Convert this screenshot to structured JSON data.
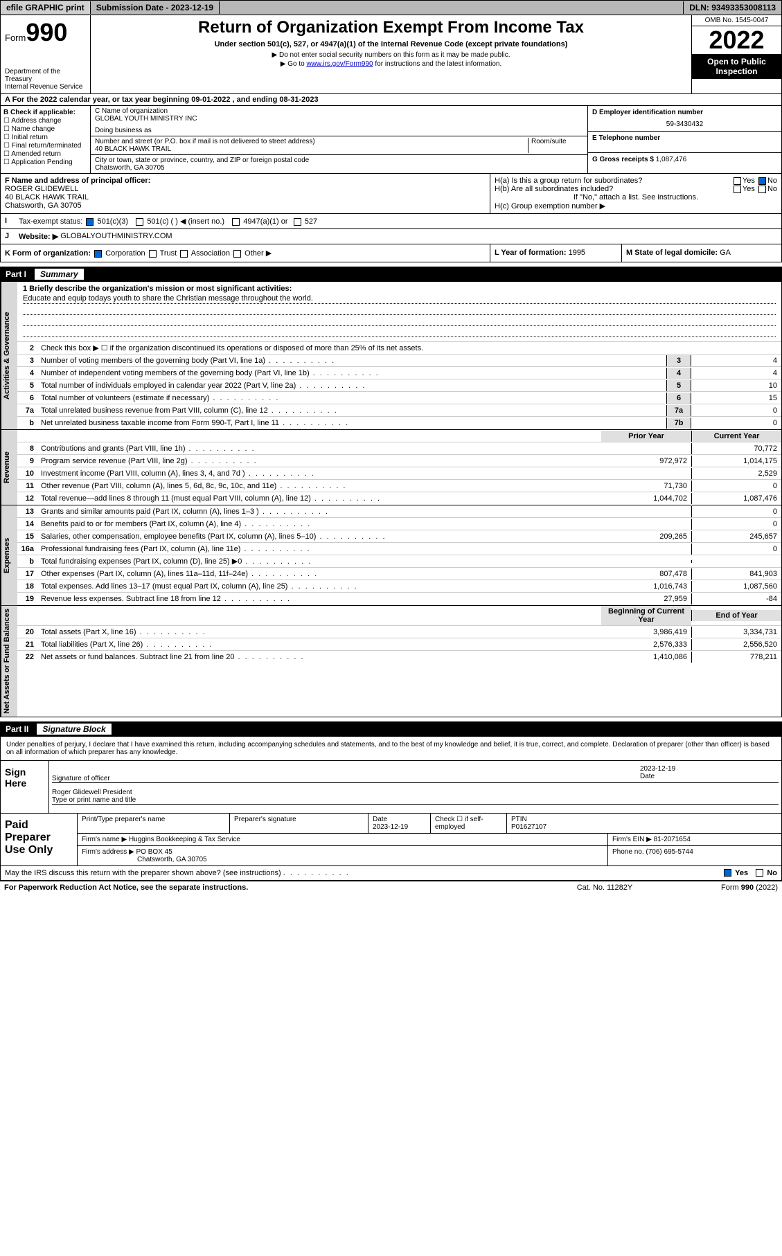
{
  "top": {
    "efile": "efile GRAPHIC print",
    "sub_date_lbl": "Submission Date - 2023-12-19",
    "dln": "DLN: 93493353008113"
  },
  "header": {
    "form_word": "Form",
    "form_num": "990",
    "dept": "Department of the Treasury",
    "irs": "Internal Revenue Service",
    "title": "Return of Organization Exempt From Income Tax",
    "sub": "Under section 501(c), 527, or 4947(a)(1) of the Internal Revenue Code (except private foundations)",
    "note1": "▶ Do not enter social security numbers on this form as it may be made public.",
    "note2_pre": "▶ Go to ",
    "note2_link": "www.irs.gov/Form990",
    "note2_post": " for instructions and the latest information.",
    "omb": "OMB No. 1545-0047",
    "year": "2022",
    "inspection": "Open to Public Inspection"
  },
  "cal": "For the 2022 calendar year, or tax year beginning 09-01-2022   , and ending 08-31-2023",
  "checkB": {
    "label": "B Check if applicable:",
    "opts": [
      "Address change",
      "Name change",
      "Initial return",
      "Final return/terminated",
      "Amended return",
      "Application Pending"
    ]
  },
  "entity": {
    "name_lbl": "C Name of organization",
    "name": "GLOBAL YOUTH MINISTRY INC",
    "dba_lbl": "Doing business as",
    "addr_lbl": "Number and street (or P.O. box if mail is not delivered to street address)",
    "room_lbl": "Room/suite",
    "addr": "40 BLACK HAWK TRAIL",
    "city_lbl": "City or town, state or province, country, and ZIP or foreign postal code",
    "city": "Chatsworth, GA  30705",
    "ein_lbl": "D Employer identification number",
    "ein": "59-3430432",
    "tel_lbl": "E Telephone number",
    "gross_lbl": "G Gross receipts $",
    "gross": "1,087,476"
  },
  "officer": {
    "lbl": "F  Name and address of principal officer:",
    "name": "ROGER GLIDEWELL",
    "addr1": "40 BLACK HAWK TRAIL",
    "addr2": "Chatsworth, GA  30705"
  },
  "groupH": {
    "ha": "H(a)  Is this a group return for subordinates?",
    "hb": "H(b)  Are all subordinates included?",
    "hb_note": "If \"No,\" attach a list. See instructions.",
    "hc": "H(c)  Group exemption number ▶",
    "yes": "Yes",
    "no": "No"
  },
  "taxstatus": {
    "lbl": "Tax-exempt status:",
    "c3": "501(c)(3)",
    "c": "501(c) (  ) ◀ (insert no.)",
    "a1": "4947(a)(1) or",
    "527": "527"
  },
  "website": {
    "lbl": "Website: ▶",
    "val": "GLOBALYOUTHMINISTRY.COM"
  },
  "formorg": {
    "lbl": "K Form of organization:",
    "corp": "Corporation",
    "trust": "Trust",
    "assoc": "Association",
    "other": "Other ▶",
    "year_lbl": "L Year of formation:",
    "year": "1995",
    "state_lbl": "M State of legal domicile:",
    "state": "GA"
  },
  "part1": {
    "num": "Part I",
    "title": "Summary"
  },
  "vtabs": {
    "ag": "Activities & Governance",
    "rev": "Revenue",
    "exp": "Expenses",
    "net": "Net Assets or Fund Balances"
  },
  "mission": {
    "lbl": "1   Briefly describe the organization's mission or most significant activities:",
    "txt": "Educate and equip todays youth to share the Christian message throughout the world."
  },
  "l2": "Check this box ▶ ☐  if the organization discontinued its operations or disposed of more than 25% of its net assets.",
  "lines_ag": [
    {
      "n": "3",
      "t": "Number of voting members of the governing body (Part VI, line 1a)",
      "box": "3",
      "v": "4"
    },
    {
      "n": "4",
      "t": "Number of independent voting members of the governing body (Part VI, line 1b)",
      "box": "4",
      "v": "4"
    },
    {
      "n": "5",
      "t": "Total number of individuals employed in calendar year 2022 (Part V, line 2a)",
      "box": "5",
      "v": "10"
    },
    {
      "n": "6",
      "t": "Total number of volunteers (estimate if necessary)",
      "box": "6",
      "v": "15"
    },
    {
      "n": "7a",
      "t": "Total unrelated business revenue from Part VIII, column (C), line 12",
      "box": "7a",
      "v": "0"
    },
    {
      "n": "b",
      "t": "Net unrelated business taxable income from Form 990-T, Part I, line 11",
      "box": "7b",
      "v": "0"
    }
  ],
  "cols": {
    "prior": "Prior Year",
    "current": "Current Year",
    "begin": "Beginning of Current Year",
    "end": "End of Year"
  },
  "lines_rev": [
    {
      "n": "8",
      "t": "Contributions and grants (Part VIII, line 1h)",
      "p": "",
      "c": "70,772"
    },
    {
      "n": "9",
      "t": "Program service revenue (Part VIII, line 2g)",
      "p": "972,972",
      "c": "1,014,175"
    },
    {
      "n": "10",
      "t": "Investment income (Part VIII, column (A), lines 3, 4, and 7d )",
      "p": "",
      "c": "2,529"
    },
    {
      "n": "11",
      "t": "Other revenue (Part VIII, column (A), lines 5, 6d, 8c, 9c, 10c, and 11e)",
      "p": "71,730",
      "c": "0"
    },
    {
      "n": "12",
      "t": "Total revenue—add lines 8 through 11 (must equal Part VIII, column (A), line 12)",
      "p": "1,044,702",
      "c": "1,087,476"
    }
  ],
  "lines_exp": [
    {
      "n": "13",
      "t": "Grants and similar amounts paid (Part IX, column (A), lines 1–3 )",
      "p": "",
      "c": "0"
    },
    {
      "n": "14",
      "t": "Benefits paid to or for members (Part IX, column (A), line 4)",
      "p": "",
      "c": "0"
    },
    {
      "n": "15",
      "t": "Salaries, other compensation, employee benefits (Part IX, column (A), lines 5–10)",
      "p": "209,265",
      "c": "245,657"
    },
    {
      "n": "16a",
      "t": "Professional fundraising fees (Part IX, column (A), line 11e)",
      "p": "",
      "c": "0"
    },
    {
      "n": "b",
      "t": "Total fundraising expenses (Part IX, column (D), line 25) ▶0",
      "p": "",
      "c": ""
    },
    {
      "n": "17",
      "t": "Other expenses (Part IX, column (A), lines 11a–11d, 11f–24e)",
      "p": "807,478",
      "c": "841,903"
    },
    {
      "n": "18",
      "t": "Total expenses. Add lines 13–17 (must equal Part IX, column (A), line 25)",
      "p": "1,016,743",
      "c": "1,087,560"
    },
    {
      "n": "19",
      "t": "Revenue less expenses. Subtract line 18 from line 12",
      "p": "27,959",
      "c": "-84"
    }
  ],
  "lines_net": [
    {
      "n": "20",
      "t": "Total assets (Part X, line 16)",
      "p": "3,986,419",
      "c": "3,334,731"
    },
    {
      "n": "21",
      "t": "Total liabilities (Part X, line 26)",
      "p": "2,576,333",
      "c": "2,556,520"
    },
    {
      "n": "22",
      "t": "Net assets or fund balances. Subtract line 21 from line 20",
      "p": "1,410,086",
      "c": "778,211"
    }
  ],
  "part2": {
    "num": "Part II",
    "title": "Signature Block"
  },
  "sig": {
    "intro": "Under penalties of perjury, I declare that I have examined this return, including accompanying schedules and statements, and to the best of my knowledge and belief, it is true, correct, and complete. Declaration of preparer (other than officer) is based on all information of which preparer has any knowledge.",
    "here": "Sign Here",
    "sig_lbl": "Signature of officer",
    "date_lbl": "Date",
    "date": "2023-12-19",
    "name": "Roger Glidewell President",
    "name_lbl": "Type or print name and title"
  },
  "paid": {
    "lbl": "Paid Preparer Use Only",
    "h1": "Print/Type preparer's name",
    "h2": "Preparer's signature",
    "h3": "Date",
    "h3v": "2023-12-19",
    "h4": "Check ☐ if self-employed",
    "h5": "PTIN",
    "h5v": "P01627107",
    "firm_lbl": "Firm's name   ▶",
    "firm": "Huggins Bookkeeping & Tax Service",
    "ein_lbl": "Firm's EIN ▶",
    "ein": "81-2071654",
    "addr_lbl": "Firm's address ▶",
    "addr": "PO BOX 45",
    "addr2": "Chatsworth, GA  30705",
    "phone_lbl": "Phone no.",
    "phone": "(706) 695-5744"
  },
  "discuss": "May the IRS discuss this return with the preparer shown above? (see instructions)",
  "footer": {
    "pra": "For Paperwork Reduction Act Notice, see the separate instructions.",
    "cat": "Cat. No. 11282Y",
    "form": "Form 990 (2022)"
  }
}
